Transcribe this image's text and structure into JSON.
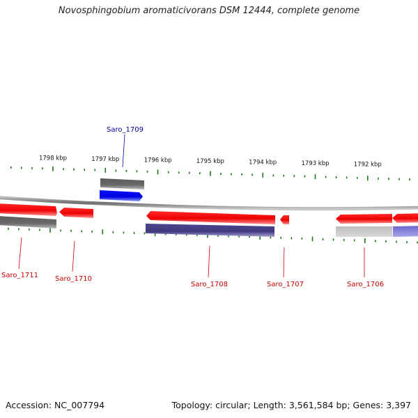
{
  "title": "Novosphingobium aromaticivorans DSM 12444, complete genome",
  "footer": {
    "accession": "Accession: NC_007794",
    "genome_info": "Topology: circular; Length: 3,561,584 bp; Genes: 3,397"
  },
  "colors": {
    "forward_gene": "#ff0000",
    "reverse_gene": "#ff0000",
    "highlight_gene": "#0000ff",
    "label_red": "#cc0000",
    "label_blue": "#0000aa",
    "tick": "#1a7a1a",
    "backbone": "#888888"
  },
  "scale": {
    "ticks": [
      {
        "label": "1798 kbp",
        "kbp": 1798
      },
      {
        "label": "1797 kbp",
        "kbp": 1797
      },
      {
        "label": "1796 kbp",
        "kbp": 1796
      },
      {
        "label": "1795 kbp",
        "kbp": 1795
      },
      {
        "label": "1794 kbp",
        "kbp": 1794
      },
      {
        "label": "1793 kbp",
        "kbp": 1793
      },
      {
        "label": "1792 kbp",
        "kbp": 1792
      }
    ]
  },
  "genes": [
    {
      "name": "Saro_1711",
      "color": "red"
    },
    {
      "name": "Saro_1710",
      "color": "red"
    },
    {
      "name": "Saro_1709",
      "color": "blue"
    },
    {
      "name": "Saro_1708",
      "color": "red"
    },
    {
      "name": "Saro_1707",
      "color": "red"
    },
    {
      "name": "Saro_1706",
      "color": "red"
    }
  ]
}
